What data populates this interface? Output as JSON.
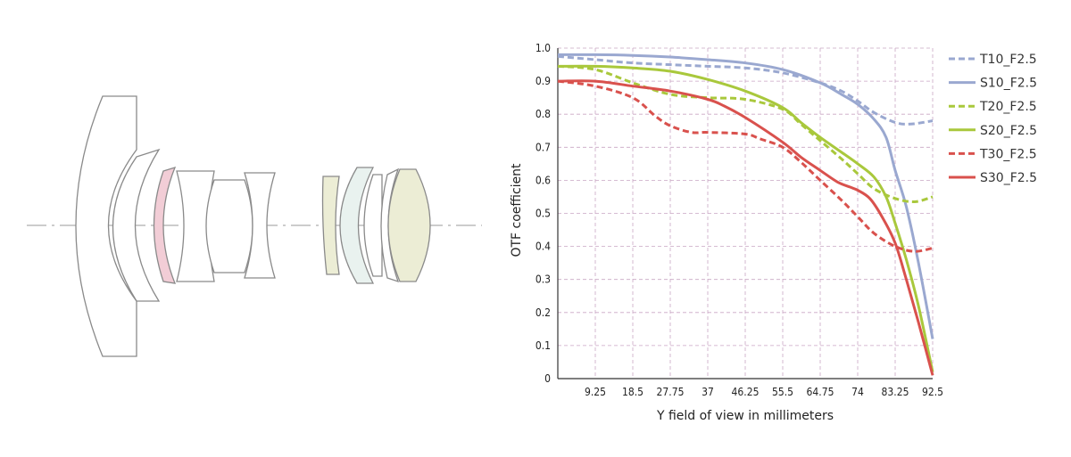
{
  "colors": {
    "blue": "#9aa8d0",
    "green": "#a9c83c",
    "red": "#d9514d",
    "grid": "#c9a6c4",
    "axis": "#333333",
    "lens_outline": "#8a8a8a",
    "lens_pink": "#f2cdd6",
    "lens_cream": "#ecedd5",
    "lens_mint": "#e9f2ef",
    "optical_axis": "#999999"
  },
  "diagram": {
    "elements": [
      "glass-element"
    ]
  },
  "chart_data": {
    "type": "line",
    "xlabel": "Y field of view in millimeters",
    "ylabel": "OTF coefficient",
    "xlim": [
      0,
      92.5
    ],
    "ylim": [
      0,
      1.0
    ],
    "x_ticks": [
      9.25,
      18.5,
      27.75,
      37,
      46.25,
      55.5,
      64.75,
      74,
      83.25,
      92.5
    ],
    "x_tick_labels": [
      "9.25",
      "18.5",
      "27.75",
      "37",
      "46.25",
      "55.5",
      "64.75",
      "74",
      "83.25",
      "92.5"
    ],
    "y_ticks": [
      0,
      0.1,
      0.2,
      0.3,
      0.4,
      0.5,
      0.6,
      0.7,
      0.8,
      0.9,
      1.0
    ],
    "y_tick_labels": [
      "0",
      "0.1",
      "0.2",
      "0.3",
      "0.4",
      "0.5",
      "0.6",
      "0.7",
      "0.8",
      "0.9",
      "1.0"
    ],
    "grid": true,
    "legend_position": "right",
    "series": [
      {
        "name": "T10_F2.5",
        "color": "blue",
        "dash": true,
        "x": [
          0,
          9.25,
          18.5,
          27.75,
          37,
          46.25,
          55.5,
          64.75,
          70,
          74,
          78,
          83.25,
          87,
          92.5
        ],
        "y": [
          0.975,
          0.965,
          0.955,
          0.95,
          0.945,
          0.94,
          0.925,
          0.895,
          0.87,
          0.84,
          0.805,
          0.775,
          0.77,
          0.78
        ]
      },
      {
        "name": "S10_F2.5",
        "color": "blue",
        "dash": false,
        "x": [
          0,
          9.25,
          18.5,
          27.75,
          37,
          46.25,
          55.5,
          64.75,
          70,
          74,
          78,
          81,
          83.25,
          86,
          89,
          92.5
        ],
        "y": [
          0.98,
          0.98,
          0.978,
          0.973,
          0.965,
          0.955,
          0.935,
          0.895,
          0.86,
          0.83,
          0.785,
          0.73,
          0.63,
          0.52,
          0.35,
          0.12
        ]
      },
      {
        "name": "T20_F2.5",
        "color": "green",
        "dash": true,
        "x": [
          0,
          9.25,
          18.5,
          27.75,
          37,
          46.25,
          55.5,
          60,
          64.75,
          70,
          74,
          78,
          83.25,
          88,
          92.5
        ],
        "y": [
          0.945,
          0.935,
          0.895,
          0.86,
          0.85,
          0.845,
          0.815,
          0.77,
          0.72,
          0.665,
          0.62,
          0.575,
          0.545,
          0.535,
          0.55
        ]
      },
      {
        "name": "S20_F2.5",
        "color": "green",
        "dash": false,
        "x": [
          0,
          9.25,
          18.5,
          27.75,
          37,
          46.25,
          55.5,
          60,
          64.75,
          70,
          74,
          78,
          81,
          83.25,
          86,
          89,
          92.5
        ],
        "y": [
          0.945,
          0.945,
          0.94,
          0.93,
          0.905,
          0.87,
          0.82,
          0.775,
          0.73,
          0.685,
          0.65,
          0.61,
          0.55,
          0.47,
          0.36,
          0.22,
          0.02
        ]
      },
      {
        "name": "T30_F2.5",
        "color": "red",
        "dash": true,
        "x": [
          0,
          9.25,
          18.5,
          24,
          27.75,
          33,
          37,
          46.25,
          50,
          55.5,
          60,
          64.75,
          70,
          74,
          78,
          83.25,
          88,
          92.5
        ],
        "y": [
          0.9,
          0.885,
          0.85,
          0.795,
          0.765,
          0.745,
          0.745,
          0.74,
          0.725,
          0.7,
          0.655,
          0.6,
          0.54,
          0.49,
          0.44,
          0.4,
          0.385,
          0.395
        ]
      },
      {
        "name": "S30_F2.5",
        "color": "red",
        "dash": false,
        "x": [
          0,
          9.25,
          18.5,
          27.75,
          37,
          41,
          46.25,
          55.5,
          60,
          64.75,
          69,
          72,
          74,
          77,
          80,
          83.25,
          86,
          89,
          92.5
        ],
        "y": [
          0.9,
          0.9,
          0.885,
          0.87,
          0.845,
          0.825,
          0.79,
          0.715,
          0.67,
          0.63,
          0.595,
          0.58,
          0.57,
          0.545,
          0.49,
          0.41,
          0.3,
          0.17,
          0.01
        ]
      }
    ]
  }
}
